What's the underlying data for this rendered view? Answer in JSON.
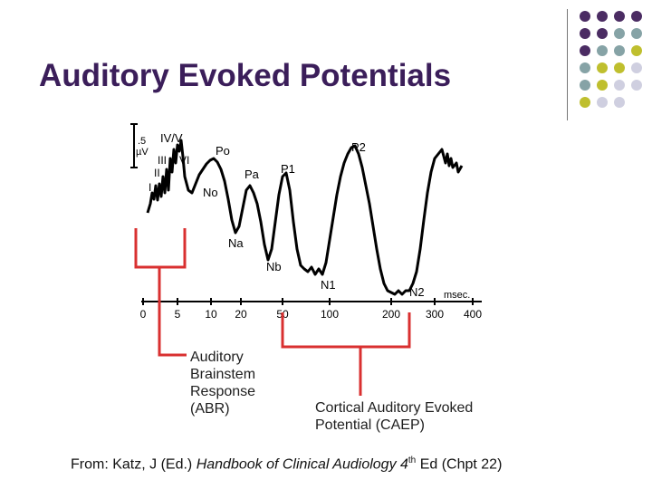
{
  "slide": {
    "title": "Auditory Evoked Potentials",
    "colors": {
      "title": "#3b1e5a",
      "purple": "#4b2c63",
      "teal": "#86a3a6",
      "olive": "#bfbf2e",
      "lavender": "#cfcfe0",
      "bracket": "#d93030"
    }
  },
  "figure": {
    "scale_label_1": ".5",
    "scale_label_2": "µV",
    "peaks": [
      "IV/V",
      "I",
      "II",
      "III",
      "VI",
      "No",
      "Po",
      "Pa",
      "Na",
      "P1",
      "Nb",
      "N1",
      "P2",
      "N2"
    ],
    "unit": "msec.",
    "ticks": [
      "0",
      "5",
      "10",
      "20",
      "50",
      "100",
      "200",
      "300",
      "400"
    ]
  },
  "labels": {
    "abr": [
      "Auditory",
      "Brainstem",
      "Response",
      "(ABR)"
    ],
    "caep": [
      "Cortical Auditory Evoked",
      "Potential (CAEP)"
    ]
  },
  "source": {
    "prefix": "From: Katz, J (Ed.) ",
    "book": "Handbook of Clinical Audiology 4",
    "sup": "th",
    "suffix": " Ed (Chpt 22)"
  }
}
